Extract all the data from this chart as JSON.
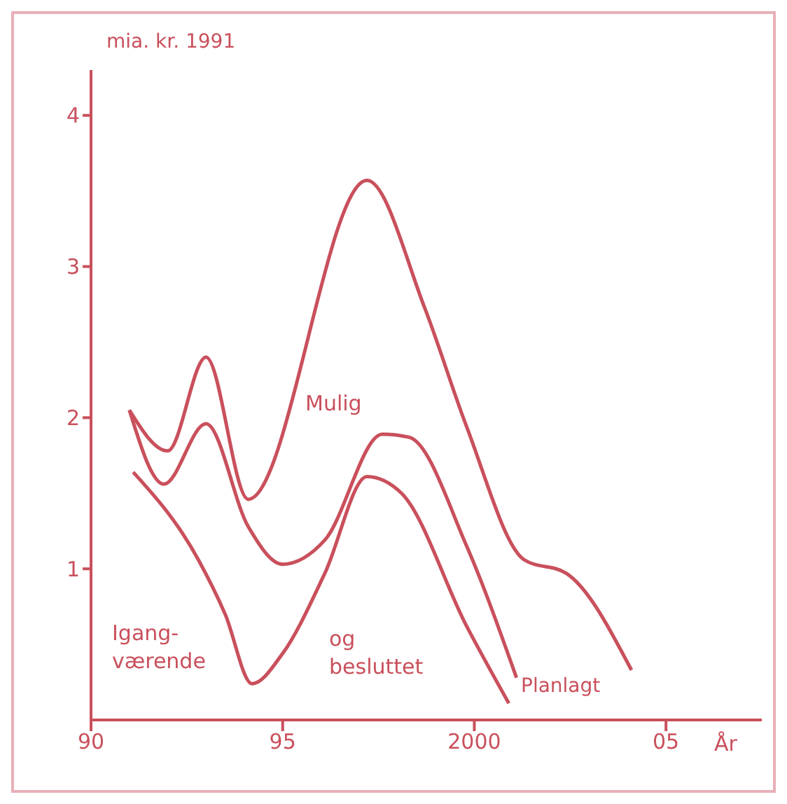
{
  "chart_data": {
    "type": "line",
    "ylabel": "mia. kr. 1991",
    "xlabel": "År",
    "xlim": [
      1990,
      2007.5
    ],
    "xticks": [
      {
        "value": 1990,
        "label": "90"
      },
      {
        "value": 1995,
        "label": "95"
      },
      {
        "value": 2000,
        "label": "2000"
      },
      {
        "value": 2005,
        "label": "05"
      }
    ],
    "ylim": [
      0,
      4.3
    ],
    "yticks": [
      1,
      2,
      3,
      4
    ],
    "marker": "none",
    "line_style": "solid",
    "series": [
      {
        "name": "Mulig",
        "color": "#c9505c",
        "x": [
          1991,
          1992,
          1993,
          1994.1,
          1997.2,
          1998.7,
          1999.8,
          2001.3,
          2002.4,
          2004.1
        ],
        "values": [
          2.05,
          1.78,
          2.4,
          1.46,
          3.57,
          2.73,
          1.94,
          1.06,
          0.97,
          0.33
        ]
      },
      {
        "name": "Planlagt",
        "color": "#c9505c",
        "x": [
          1991,
          1991.9,
          1993,
          1994.1,
          1995,
          1996.1,
          1997.6,
          1998.3,
          1999.8,
          2001.1
        ],
        "values": [
          2.05,
          1.56,
          1.96,
          1.28,
          1.03,
          1.19,
          1.89,
          1.87,
          1.15,
          0.28
        ]
      },
      {
        "name": "Igang-værende og besluttet",
        "color": "#c9505c",
        "x": [
          1991.1,
          1992.8,
          1993.5,
          1994.2,
          1995,
          1996.1,
          1997.2,
          1998.1,
          1999.8,
          2000.9
        ],
        "values": [
          1.64,
          1.06,
          0.7,
          0.24,
          0.44,
          0.97,
          1.61,
          1.5,
          0.62,
          0.11
        ]
      }
    ]
  }
}
